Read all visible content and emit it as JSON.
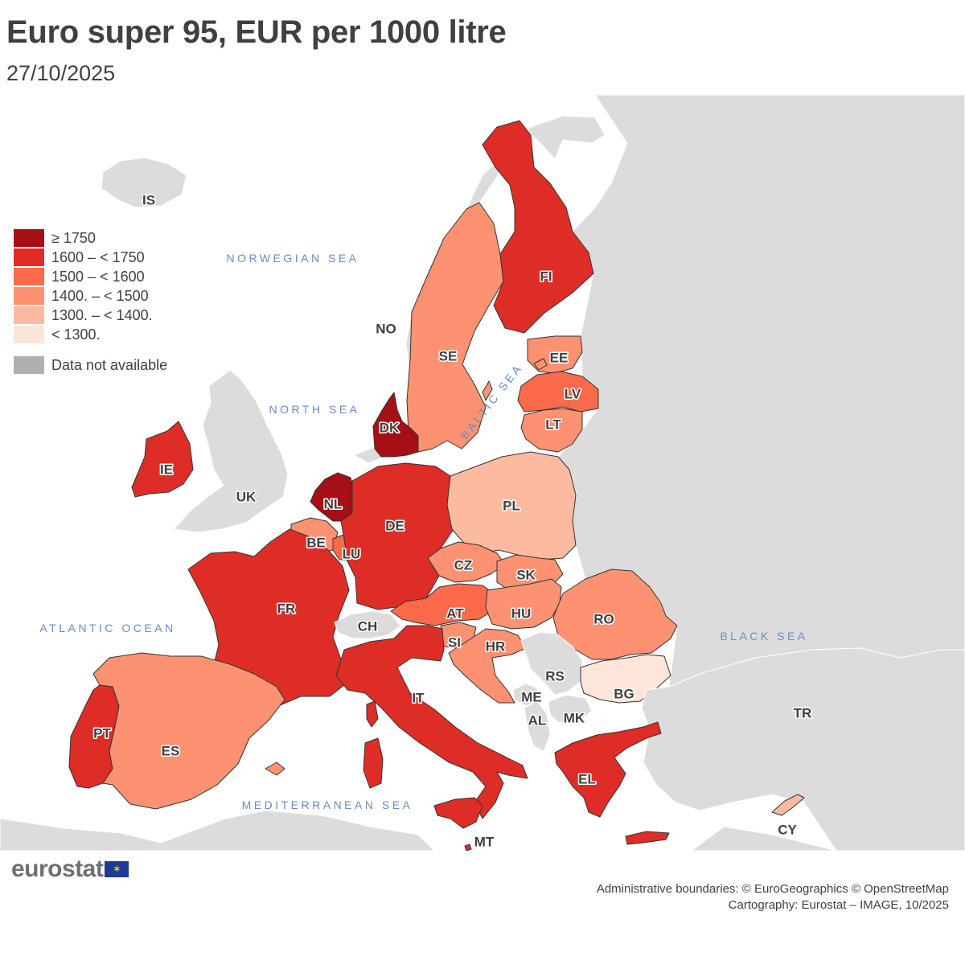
{
  "header": {
    "title": "Euro super 95, EUR per 1000 litre",
    "date": "27/10/2025"
  },
  "legend": {
    "classes": [
      {
        "label": "≥ 1750",
        "color": "#a50f15"
      },
      {
        "label": "1600 – < 1750",
        "color": "#de2d26"
      },
      {
        "label": "1500 – < 1600",
        "color": "#fb6a4a"
      },
      {
        "label": "1400. – < 1500",
        "color": "#fc9272"
      },
      {
        "label": "1300. – < 1400.",
        "color": "#fcbba1"
      },
      {
        "label": "< 1300.",
        "color": "#fee5d9"
      }
    ],
    "not_available": {
      "label": "Data not available",
      "color": "#b0b0b0"
    }
  },
  "map": {
    "background_land_color": "#dcdcdc",
    "sea_color": "#ffffff",
    "countries": [
      {
        "code": "IS",
        "class": "na"
      },
      {
        "code": "NO",
        "class": "na"
      },
      {
        "code": "SE",
        "class": "1400. – < 1500"
      },
      {
        "code": "FI",
        "class": "1600 – < 1750"
      },
      {
        "code": "EE",
        "class": "1400. – < 1500"
      },
      {
        "code": "LV",
        "class": "1500 – < 1600"
      },
      {
        "code": "LT",
        "class": "1400. – < 1500"
      },
      {
        "code": "DK",
        "class": "≥ 1750"
      },
      {
        "code": "IE",
        "class": "1600 – < 1750"
      },
      {
        "code": "UK",
        "class": "na"
      },
      {
        "code": "NL",
        "class": "≥ 1750"
      },
      {
        "code": "BE",
        "class": "1400. – < 1500"
      },
      {
        "code": "LU",
        "class": "1500 – < 1600"
      },
      {
        "code": "DE",
        "class": "1600 – < 1750"
      },
      {
        "code": "PL",
        "class": "1300. – < 1400."
      },
      {
        "code": "CZ",
        "class": "1400. – < 1500"
      },
      {
        "code": "SK",
        "class": "1400. – < 1500"
      },
      {
        "code": "AT",
        "class": "1500 – < 1600"
      },
      {
        "code": "HU",
        "class": "1400. – < 1500"
      },
      {
        "code": "RO",
        "class": "1400. – < 1500"
      },
      {
        "code": "FR",
        "class": "1600 – < 1750"
      },
      {
        "code": "CH",
        "class": "na"
      },
      {
        "code": "SI",
        "class": "1400. – < 1500"
      },
      {
        "code": "HR",
        "class": "1400. – < 1500"
      },
      {
        "code": "RS",
        "class": "na"
      },
      {
        "code": "ME",
        "class": "na"
      },
      {
        "code": "AL",
        "class": "na"
      },
      {
        "code": "MK",
        "class": "na"
      },
      {
        "code": "BG",
        "class": "< 1300."
      },
      {
        "code": "TR",
        "class": "na"
      },
      {
        "code": "PT",
        "class": "1600 – < 1750"
      },
      {
        "code": "ES",
        "class": "1400. – < 1500"
      },
      {
        "code": "IT",
        "class": "1600 – < 1750"
      },
      {
        "code": "MT",
        "class": "1600 – < 1750"
      },
      {
        "code": "EL",
        "class": "1600 – < 1750"
      },
      {
        "code": "CY",
        "class": "1300. – < 1400."
      }
    ],
    "seas": [
      {
        "id": "norwegian",
        "label": "NORWEGIAN SEA"
      },
      {
        "id": "north",
        "label": "NORTH SEA"
      },
      {
        "id": "baltic",
        "label": "BALTIC SEA"
      },
      {
        "id": "atlantic",
        "label": "ATLANTIC OCEAN"
      },
      {
        "id": "black",
        "label": "BLACK SEA"
      },
      {
        "id": "mediterranean",
        "label": "MEDITERRANEAN SEA"
      }
    ]
  },
  "footer": {
    "logo_text": "eurostat",
    "flag_icon": "eu-flag-icon",
    "credits_line1": "Administrative boundaries: © EuroGeographics © OpenStreetMap",
    "credits_line2": "Cartography: Eurostat – IMAGE, 10/2025"
  }
}
